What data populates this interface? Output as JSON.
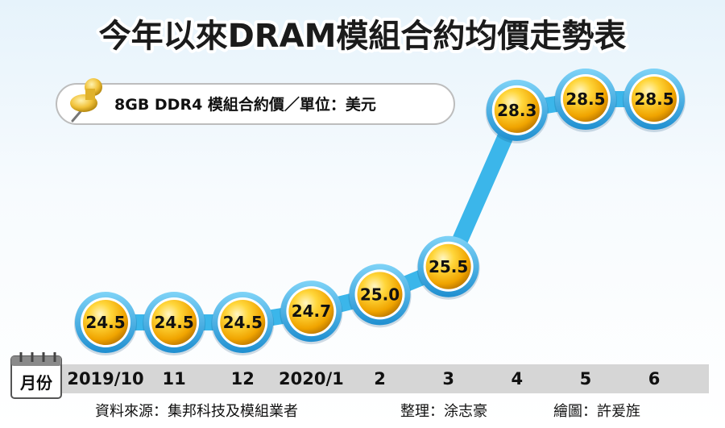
{
  "title": "今年以來DRAM模組合約均價走勢表",
  "subtitle": "8GB DDR4 模組合約價／單位：美元",
  "axis_tag": "月份",
  "footer": {
    "source": "資料來源：集邦科技及模組業者",
    "editor": "整理：涂志豪",
    "illustrator": "繪圖：許爰旌"
  },
  "colors": {
    "line": "#3bb6ea",
    "marker_gold": "#f5b800",
    "marker_ring": "#3aa7e0",
    "axis_band": "#d6d6d6"
  },
  "chart_data": {
    "type": "line",
    "categories": [
      "2019/10",
      "11",
      "12",
      "2020/1",
      "2",
      "3",
      "4",
      "5",
      "6"
    ],
    "values": [
      24.5,
      24.5,
      24.5,
      24.7,
      25.0,
      25.5,
      28.3,
      28.5,
      28.5
    ],
    "value_labels": [
      "24.5",
      "24.5",
      "24.5",
      "24.7",
      "25.0",
      "25.5",
      "28.3",
      "28.5",
      "28.5"
    ],
    "title": "今年以來DRAM模組合約均價走勢表",
    "ylabel": "",
    "legend": "none",
    "grid": false
  }
}
